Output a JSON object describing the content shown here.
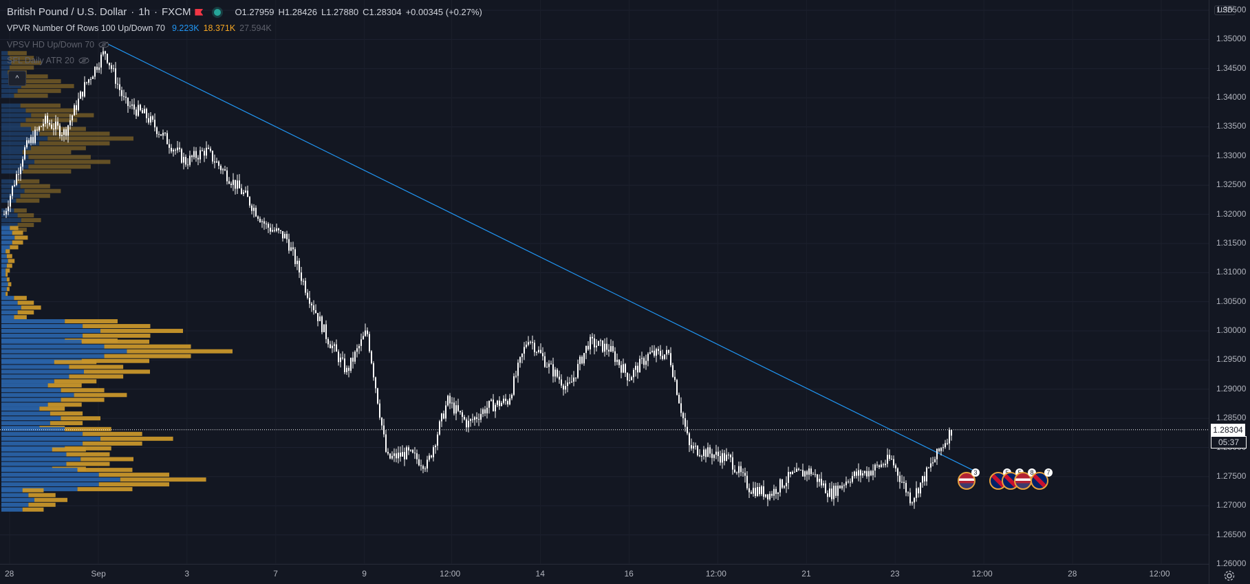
{
  "symbol": {
    "name": "British Pound / U.S. Dollar",
    "interval": "1h",
    "exchange": "FXCM",
    "open": "O1.27959",
    "high": "H1.28426",
    "low": "L1.27880",
    "close": "C1.28304",
    "change": "+0.00345 (+0.27%)"
  },
  "indicators": [
    {
      "label": "VPVR Number Of Rows 100 Up/Down 70",
      "up": "9.223K",
      "down": "18.371K",
      "total": "27.594K"
    },
    {
      "label": "VPSV HD Up/Down 70"
    },
    {
      "label": "SFL Daily ATR 20"
    }
  ],
  "collapse_symbol": "^",
  "currency": "USD",
  "current_price": "1.28304",
  "countdown": "05:37",
  "price_axis": [
    "1.35500",
    "1.35000",
    "1.34500",
    "1.34000",
    "1.33500",
    "1.33000",
    "1.32500",
    "1.32000",
    "1.31500",
    "1.31000",
    "1.30500",
    "1.30000",
    "1.29500",
    "1.29000",
    "1.28500",
    "1.28000",
    "1.27500",
    "1.27000",
    "1.26500",
    "1.26000"
  ],
  "time_axis": [
    "28",
    "Sep",
    "3",
    "7",
    "9",
    "12:00",
    "14",
    "16",
    "12:00",
    "21",
    "23",
    "12:00",
    "28",
    "12:00"
  ],
  "events": [
    {
      "icon": "us-flag-icon",
      "count": "3"
    },
    {
      "icon": "uk-flag-icon",
      "count": "5"
    },
    {
      "icon": "uk-flag-icon",
      "count": "5"
    },
    {
      "icon": "us-flag-icon",
      "count": "8"
    },
    {
      "icon": "uk-flag-icon",
      "count": "7"
    }
  ],
  "colors": {
    "background": "#131722",
    "candle": "#ffffff",
    "trendline": "#2196f3",
    "volume_up": "#2962a8",
    "volume_down": "#c8962b",
    "current_price": "#ffffff"
  },
  "chart_data": {
    "type": "candlestick",
    "ylim": [
      1.26,
      1.355
    ],
    "x": [
      "Aug 28",
      "Aug 29",
      "Aug 30",
      "Aug 31",
      "Sep 1",
      "Sep 2",
      "Sep 3",
      "Sep 4",
      "Sep 5",
      "Sep 6",
      "Sep 7",
      "Sep 8",
      "Sep 9",
      "Sep 10",
      "Sep 11",
      "Sep 12",
      "Sep 13",
      "Sep 14",
      "Sep 15",
      "Sep 16",
      "Sep 17",
      "Sep 18",
      "Sep 19",
      "Sep 20",
      "Sep 21",
      "Sep 22",
      "Sep 23",
      "Sep 24",
      "Sep 25",
      "Sep 26",
      "Sep 27",
      "Sep 28"
    ],
    "close_path": [
      1.32,
      1.331,
      1.336,
      1.334,
      1.342,
      1.348,
      1.339,
      1.337,
      1.333,
      1.329,
      1.331,
      1.327,
      1.323,
      1.318,
      1.316,
      1.307,
      1.299,
      1.293,
      1.3,
      1.278,
      1.279,
      1.277,
      1.288,
      1.284,
      1.287,
      1.288,
      1.299,
      1.294,
      1.29,
      1.298,
      1.297,
      1.292,
      1.296,
      1.296,
      1.28,
      1.279,
      1.278,
      1.273,
      1.272,
      1.275,
      1.276,
      1.272,
      1.275,
      1.276,
      1.278,
      1.271,
      1.277,
      1.283
    ],
    "trendline": {
      "from_price": 1.3485,
      "to_price": 1.276
    },
    "volume_profile": [
      {
        "price": 1.346,
        "up": 0.03,
        "down": 0.12
      },
      {
        "price": 1.342,
        "up": 0.06,
        "down": 0.22
      },
      {
        "price": 1.337,
        "up": 0.09,
        "down": 0.28
      },
      {
        "price": 1.333,
        "up": 0.14,
        "down": 0.4
      },
      {
        "price": 1.329,
        "up": 0.1,
        "down": 0.33
      },
      {
        "price": 1.324,
        "up": 0.07,
        "down": 0.18
      },
      {
        "price": 1.319,
        "up": 0.06,
        "down": 0.12
      },
      {
        "price": 1.316,
        "up": 0.04,
        "down": 0.08
      },
      {
        "price": 1.312,
        "up": 0.02,
        "down": 0.04
      },
      {
        "price": 1.308,
        "up": 0.02,
        "down": 0.03
      },
      {
        "price": 1.304,
        "up": 0.06,
        "down": 0.12
      },
      {
        "price": 1.3,
        "up": 0.3,
        "down": 0.55
      },
      {
        "price": 1.2965,
        "up": 0.38,
        "down": 0.7
      },
      {
        "price": 1.293,
        "up": 0.25,
        "down": 0.45
      },
      {
        "price": 1.289,
        "up": 0.22,
        "down": 0.38
      },
      {
        "price": 1.285,
        "up": 0.18,
        "down": 0.3
      },
      {
        "price": 1.2815,
        "up": 0.3,
        "down": 0.52
      },
      {
        "price": 1.278,
        "up": 0.24,
        "down": 0.4
      },
      {
        "price": 1.2745,
        "up": 0.36,
        "down": 0.62
      },
      {
        "price": 1.271,
        "up": 0.1,
        "down": 0.2
      }
    ]
  }
}
